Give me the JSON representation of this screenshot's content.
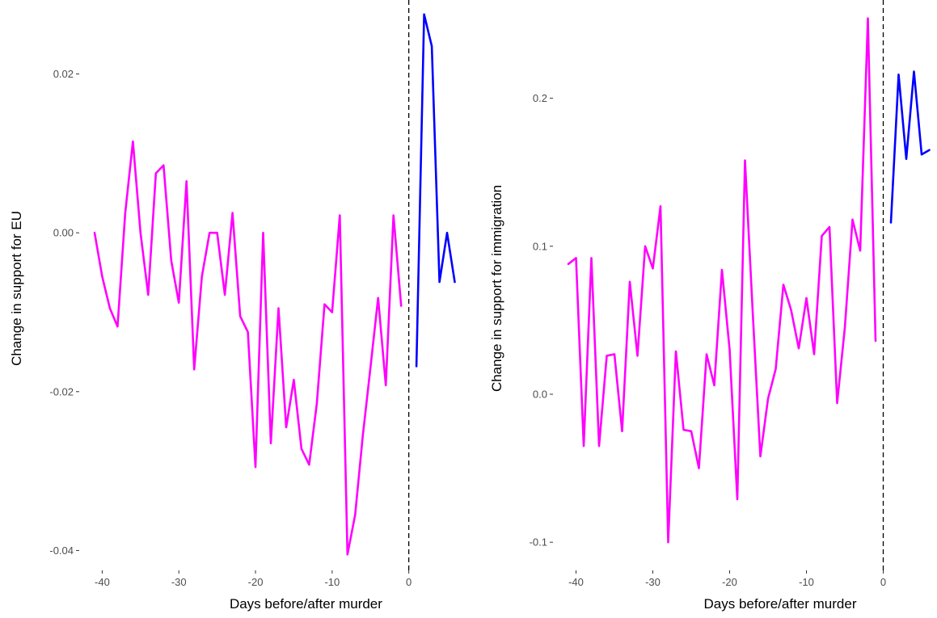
{
  "chart_data": [
    {
      "type": "line",
      "title": "",
      "xlabel": "Days before/after murder",
      "ylabel": "Change in support for EU",
      "xlim": [
        -43,
        7
      ],
      "ylim": [
        -0.0425,
        0.0285
      ],
      "x_ticks": [
        -40,
        -30,
        -20,
        -10,
        0
      ],
      "x_tick_labels": [
        "-40",
        "-30",
        "-20",
        "-10",
        "0"
      ],
      "y_ticks": [
        -0.04,
        -0.02,
        0.0,
        0.02
      ],
      "y_tick_labels": [
        "-0.04",
        "-0.02",
        "0.00",
        "0.02"
      ],
      "vline_x": 0,
      "grid": false,
      "series": [
        {
          "color": "#ff00ff",
          "x": [
            -41,
            -40,
            -39,
            -38,
            -37,
            -36,
            -35,
            -34,
            -33,
            -32,
            -31,
            -30,
            -29,
            -28,
            -27,
            -26,
            -25,
            -24,
            -23,
            -22,
            -21,
            -20,
            -19,
            -18,
            -17,
            -16,
            -15,
            -14,
            -13,
            -12,
            -11,
            -10,
            -9,
            -8,
            -7,
            -6,
            -5,
            -4,
            -3,
            -2,
            -1
          ],
          "y": [
            0.0,
            -0.0055,
            -0.0095,
            -0.0118,
            0.0025,
            0.0115,
            0.0,
            -0.0078,
            0.0075,
            0.0085,
            -0.0035,
            -0.0088,
            0.0065,
            -0.0172,
            -0.0055,
            0.0,
            0.0,
            -0.0078,
            0.0025,
            -0.0105,
            -0.0125,
            -0.0295,
            0.0,
            -0.0265,
            -0.0095,
            -0.0245,
            -0.0185,
            -0.0272,
            -0.0292,
            -0.0215,
            -0.009,
            -0.01,
            0.0022,
            -0.0405,
            -0.0355,
            -0.0255,
            -0.017,
            -0.0082,
            -0.0192,
            0.0022,
            -0.0092
          ]
        },
        {
          "color": "#0000ff",
          "x": [
            1,
            2,
            3,
            4,
            5,
            6
          ],
          "y": [
            -0.0168,
            0.0275,
            0.0235,
            -0.0062,
            0.0,
            -0.0062
          ]
        }
      ]
    },
    {
      "type": "line",
      "title": "",
      "xlabel": "Days before/after murder",
      "ylabel": "Change in support for immigration",
      "xlim": [
        -43,
        7
      ],
      "ylim": [
        -0.119,
        0.262
      ],
      "x_ticks": [
        -40,
        -30,
        -20,
        -10,
        0
      ],
      "x_tick_labels": [
        "-40",
        "-30",
        "-20",
        "-10",
        "0"
      ],
      "y_ticks": [
        -0.1,
        0.0,
        0.1,
        0.2
      ],
      "y_tick_labels": [
        "-0.1",
        "0.0",
        "0.1",
        "0.2"
      ],
      "vline_x": 0,
      "grid": false,
      "series": [
        {
          "color": "#ff00ff",
          "x": [
            -41,
            -40,
            -39,
            -38,
            -37,
            -36,
            -35,
            -34,
            -33,
            -32,
            -31,
            -30,
            -29,
            -28,
            -27,
            -26,
            -25,
            -24,
            -23,
            -22,
            -21,
            -20,
            -19,
            -18,
            -17,
            -16,
            -15,
            -14,
            -13,
            -12,
            -11,
            -10,
            -9,
            -8,
            -7,
            -6,
            -5,
            -4,
            -3,
            -2,
            -1
          ],
          "y": [
            0.088,
            0.092,
            -0.035,
            0.092,
            -0.035,
            0.026,
            0.027,
            -0.025,
            0.076,
            0.026,
            0.1,
            0.085,
            0.127,
            -0.1,
            0.029,
            -0.024,
            -0.025,
            -0.05,
            0.027,
            0.006,
            0.084,
            0.03,
            -0.071,
            0.158,
            0.056,
            -0.042,
            -0.003,
            0.017,
            0.074,
            0.057,
            0.031,
            0.065,
            0.027,
            0.107,
            0.113,
            -0.006,
            0.045,
            0.118,
            0.097,
            0.254,
            0.036
          ]
        },
        {
          "color": "#0000ff",
          "x": [
            1,
            2,
            3,
            4,
            5,
            6
          ],
          "y": [
            0.116,
            0.216,
            0.159,
            0.218,
            0.162,
            0.165
          ]
        }
      ]
    }
  ]
}
